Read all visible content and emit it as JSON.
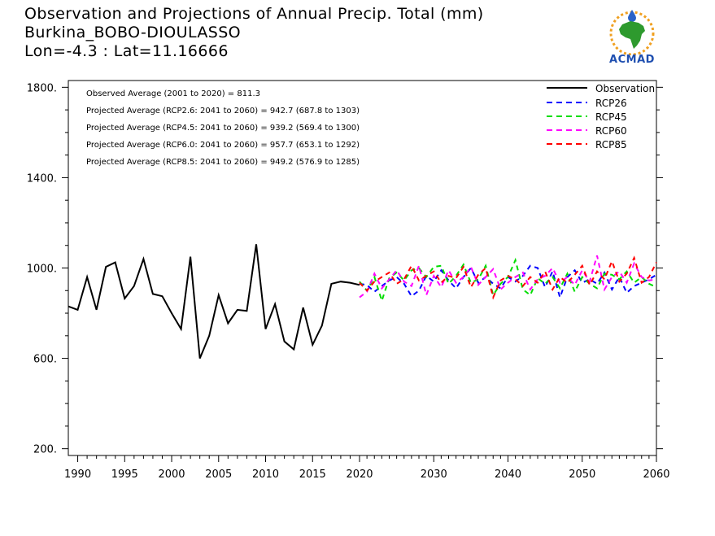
{
  "header": {
    "title_line1": "Observation and Projections of Annual Precip. Total (mm)",
    "title_line2": "Burkina_BOBO-DIOULASSO",
    "title_line3": "Lon=-4.3 : Lat=11.16666"
  },
  "logo": {
    "text": "ACMAD",
    "icon": "africa-map-logo-icon"
  },
  "stats": [
    "Observed Average (2001 to 2020) = 811.3",
    "Projected Average (RCP2.6: 2041 to 2060) = 942.7 (687.8 to 1303)",
    "Projected Average (RCP4.5: 2041 to 2060) = 939.2 (569.4 to 1300)",
    "Projected Average (RCP6.0: 2041 to 2060) = 957.7 (653.1 to 1292)",
    "Projected Average (RCP8.5: 2041 to 2060) = 949.2 (576.9 to 1285)"
  ],
  "chart_data": {
    "type": "line",
    "y_ticks": [
      200,
      600,
      1000,
      1400,
      1800
    ],
    "y_tick_labels": [
      "200.",
      "600.",
      "1000.",
      "1400.",
      "1800."
    ],
    "ylim": [
      170,
      1830
    ],
    "x_ticks_left": [
      1990,
      1995,
      2000,
      2005,
      2010,
      2015,
      2020
    ],
    "x_ticks_right": [
      2030,
      2040,
      2050,
      2060
    ],
    "x_tick_labels_left": [
      "1990",
      "1995",
      "2000",
      "2005",
      "2010",
      "2015",
      "2020"
    ],
    "x_tick_labels_right": [
      "2030",
      "2040",
      "2050",
      "2060"
    ],
    "grid": false,
    "legend_position": "top-right",
    "legend": [
      {
        "name": "Observation",
        "color": "#000000",
        "dashed": false
      },
      {
        "name": "RCP26",
        "color": "#0000ff",
        "dashed": true
      },
      {
        "name": "RCP45",
        "color": "#00dd00",
        "dashed": true
      },
      {
        "name": "RCP60",
        "color": "#ff00ff",
        "dashed": true
      },
      {
        "name": "RCP85",
        "color": "#ff0000",
        "dashed": true
      }
    ],
    "observation": {
      "name": "Observation",
      "x": [
        1989,
        1990,
        1991,
        1992,
        1993,
        1994,
        1995,
        1996,
        1997,
        1998,
        1999,
        2000,
        2001,
        2002,
        2003,
        2004,
        2005,
        2006,
        2007,
        2008,
        2009,
        2010,
        2011,
        2012,
        2013,
        2014,
        2015,
        2016,
        2017,
        2018,
        2019,
        2020
      ],
      "values": [
        830,
        815,
        960,
        815,
        1005,
        1025,
        865,
        920,
        1040,
        885,
        875,
        800,
        730,
        1050,
        600,
        700,
        880,
        755,
        815,
        810,
        1105,
        730,
        840,
        675,
        640,
        825,
        660,
        745,
        930,
        940,
        935,
        925
      ]
    },
    "projections": [
      {
        "name": "RCP26",
        "color": "#0000ff",
        "x": [
          2020,
          2021,
          2022,
          2023,
          2024,
          2025,
          2026,
          2027,
          2028,
          2029,
          2030,
          2031,
          2032,
          2033,
          2034,
          2035,
          2036,
          2037,
          2038,
          2039,
          2040,
          2041,
          2042,
          2043,
          2044,
          2045,
          2046,
          2047,
          2048,
          2049,
          2050,
          2051,
          2052,
          2053,
          2054,
          2055,
          2056,
          2057,
          2058,
          2059,
          2060
        ],
        "values": [
          930,
          925,
          895,
          920,
          945,
          960,
          930,
          875,
          900,
          965,
          940,
          990,
          945,
          910,
          960,
          1000,
          935,
          960,
          930,
          910,
          960,
          940,
          965,
          1010,
          1000,
          915,
          985,
          870,
          960,
          990,
          935,
          950,
          930,
          980,
          905,
          960,
          890,
          920,
          935,
          950,
          970
        ]
      },
      {
        "name": "RCP45",
        "color": "#00dd00",
        "x": [
          2020,
          2021,
          2022,
          2023,
          2024,
          2025,
          2026,
          2027,
          2028,
          2029,
          2030,
          2031,
          2032,
          2033,
          2034,
          2035,
          2036,
          2037,
          2038,
          2039,
          2040,
          2041,
          2042,
          2043,
          2044,
          2045,
          2046,
          2047,
          2048,
          2049,
          2050,
          2051,
          2052,
          2053,
          2054,
          2055,
          2056,
          2057,
          2058,
          2059,
          2060
        ],
        "values": [
          940,
          900,
          960,
          855,
          955,
          980,
          945,
          990,
          1000,
          960,
          1005,
          1010,
          930,
          965,
          1015,
          935,
          950,
          1010,
          880,
          930,
          960,
          1035,
          905,
          880,
          955,
          930,
          960,
          910,
          975,
          895,
          960,
          930,
          910,
          975,
          970,
          950,
          985,
          935,
          960,
          930,
          915
        ]
      },
      {
        "name": "RCP60",
        "color": "#ff00ff",
        "x": [
          2020,
          2021,
          2022,
          2023,
          2024,
          2025,
          2026,
          2027,
          2028,
          2029,
          2030,
          2031,
          2032,
          2033,
          2034,
          2035,
          2036,
          2037,
          2038,
          2039,
          2040,
          2041,
          2042,
          2043,
          2044,
          2045,
          2046,
          2047,
          2048,
          2049,
          2050,
          2051,
          2052,
          2053,
          2054,
          2055,
          2056,
          2057,
          2058,
          2059,
          2060
        ],
        "values": [
          870,
          895,
          975,
          910,
          950,
          990,
          940,
          920,
          1010,
          880,
          965,
          915,
          990,
          935,
          960,
          1005,
          925,
          960,
          995,
          905,
          935,
          960,
          980,
          905,
          950,
          965,
          1000,
          935,
          960,
          925,
          990,
          940,
          1055,
          905,
          960,
          985,
          935,
          1020,
          960,
          945,
          950
        ]
      },
      {
        "name": "RCP85",
        "color": "#ff0000",
        "x": [
          2020,
          2021,
          2022,
          2023,
          2024,
          2025,
          2026,
          2027,
          2028,
          2029,
          2030,
          2031,
          2032,
          2033,
          2034,
          2035,
          2036,
          2037,
          2038,
          2039,
          2040,
          2041,
          2042,
          2043,
          2044,
          2045,
          2046,
          2047,
          2048,
          2049,
          2050,
          2051,
          2052,
          2053,
          2054,
          2055,
          2056,
          2057,
          2058,
          2059,
          2060
        ],
        "values": [
          935,
          900,
          940,
          960,
          980,
          930,
          950,
          1010,
          945,
          965,
          985,
          935,
          965,
          955,
          1005,
          915,
          970,
          1000,
          870,
          945,
          965,
          950,
          920,
          960,
          935,
          985,
          905,
          960,
          935,
          970,
          1010,
          925,
          985,
          950,
          1030,
          940,
          975,
          1045,
          935,
          960,
          1025
        ]
      }
    ]
  }
}
